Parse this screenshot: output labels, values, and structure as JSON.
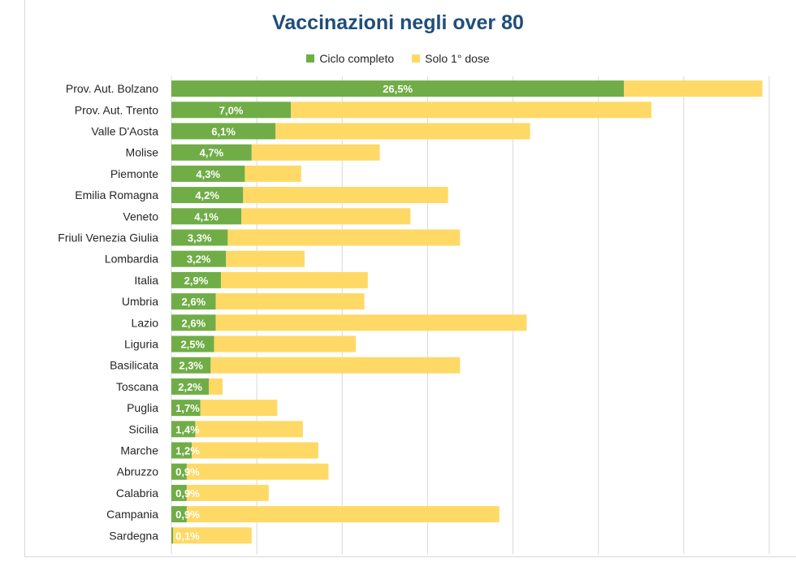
{
  "chart_data": {
    "type": "bar",
    "orientation": "horizontal",
    "stacked": true,
    "title": "Vaccinazioni negli over 80",
    "legend_position": "top",
    "grid": true,
    "categories": [
      "Prov. Aut. Bolzano",
      "Prov. Aut. Trento",
      "Valle D'Aosta",
      "Molise",
      "Piemonte",
      "Emilia Romagna",
      "Veneto",
      "Friuli Venezia Giulia",
      "Lombardia",
      "Italia",
      "Umbria",
      "Lazio",
      "Liguria",
      "Basilicata",
      "Toscana",
      "Puglia",
      "Sicilia",
      "Marche",
      "Abruzzo",
      "Calabria",
      "Campania",
      "Sardegna"
    ],
    "series": [
      {
        "name": "Ciclo completo",
        "color": "#70ad47",
        "values": [
          26.5,
          7.0,
          6.1,
          4.7,
          4.3,
          4.2,
          4.1,
          3.3,
          3.2,
          2.9,
          2.6,
          2.6,
          2.5,
          2.3,
          2.2,
          1.7,
          1.4,
          1.2,
          0.9,
          0.9,
          0.9,
          0.1
        ],
        "labels": [
          "26,5%",
          "7,0%",
          "6,1%",
          "4,7%",
          "4,3%",
          "4,2%",
          "4,1%",
          "3,3%",
          "3,2%",
          "2,9%",
          "2,6%",
          "2,6%",
          "2,5%",
          "2,3%",
          "2,2%",
          "1,7%",
          "1,4%",
          "1,2%",
          "0,9%",
          "0,9%",
          "0,9%",
          "0,1%"
        ]
      },
      {
        "name": "Solo 1° dose",
        "color": "#ffd966",
        "values": [
          8.1,
          21.1,
          14.9,
          7.5,
          3.3,
          12.0,
          9.9,
          13.6,
          4.6,
          8.6,
          8.7,
          18.2,
          8.3,
          14.6,
          0.8,
          4.5,
          6.3,
          7.4,
          8.3,
          4.8,
          18.3,
          4.6
        ]
      }
    ],
    "xlim": [
      0,
      35
    ]
  }
}
